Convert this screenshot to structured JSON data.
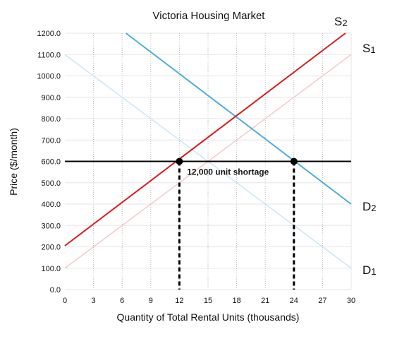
{
  "chart_data": {
    "type": "line",
    "title": "Victoria Housing Market",
    "xlabel": "Quantity of Total Rental Units (thousands)",
    "ylabel": "Price ($/month)",
    "xlim": [
      0,
      30
    ],
    "ylim": [
      0,
      1200
    ],
    "x_ticks": [
      0,
      3,
      6,
      9,
      12,
      15,
      18,
      21,
      24,
      27,
      30
    ],
    "y_ticks": [
      0,
      100,
      200,
      300,
      400,
      500,
      600,
      700,
      800,
      900,
      1000,
      1100,
      1200
    ],
    "y_tick_labels": [
      "0.0",
      "100.0",
      "200.0",
      "300.0",
      "400.0",
      "500.0",
      "600.0",
      "700.0",
      "800.0",
      "900.0",
      "1000.0",
      "1100.0",
      "1200.0"
    ],
    "grid": {
      "horizontal": "solid light",
      "vertical": "dotted"
    },
    "series": [
      {
        "name": "D1",
        "label_main": "D",
        "label_sub": "1",
        "color": "#cce6f4",
        "points": [
          [
            0,
            1100
          ],
          [
            30,
            100
          ]
        ]
      },
      {
        "name": "S1",
        "label_main": "S",
        "label_sub": "1",
        "color": "#f6c9c9",
        "points": [
          [
            0,
            100
          ],
          [
            30,
            1100
          ]
        ]
      },
      {
        "name": "D2",
        "label_main": "D",
        "label_sub": "2",
        "color": "#4ab0d8",
        "points": [
          [
            6.4,
            1200
          ],
          [
            30,
            400
          ]
        ]
      },
      {
        "name": "S2",
        "label_main": "S",
        "label_sub": "2",
        "color": "#d91c1c",
        "points": [
          [
            0,
            205
          ],
          [
            29.4,
            1200
          ]
        ]
      }
    ],
    "price_line": {
      "y": 600,
      "color": "#000000"
    },
    "points": [
      {
        "x": 12,
        "y": 600
      },
      {
        "x": 24,
        "y": 600
      }
    ],
    "drop_lines": [
      {
        "x": 12,
        "from_y": 600,
        "to_y": 0
      },
      {
        "x": 24,
        "from_y": 600,
        "to_y": 0
      }
    ],
    "annotations": [
      {
        "text": "12,000 unit shortage",
        "x": 12.8,
        "y": 530
      }
    ]
  }
}
